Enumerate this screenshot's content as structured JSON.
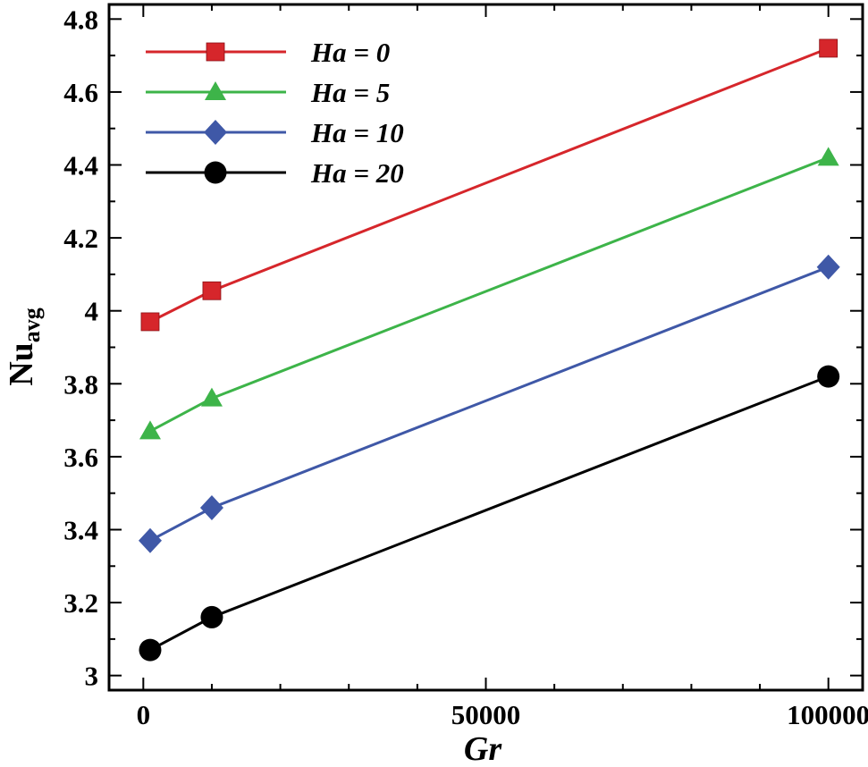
{
  "chart_data": {
    "type": "line",
    "title": "",
    "xlabel": "Gr",
    "ylabel": "Nu",
    "ylabel_subscript": "avg",
    "x": [
      1000,
      10000,
      100000
    ],
    "xlim": [
      -5000,
      105000
    ],
    "ylim": [
      2.96,
      4.84
    ],
    "xticks": [
      0,
      50000,
      100000
    ],
    "xtick_labels": [
      "0",
      "50000",
      "100000"
    ],
    "yticks": [
      3,
      3.2,
      3.4,
      3.6,
      3.8,
      4,
      4.2,
      4.4,
      4.6,
      4.8
    ],
    "ytick_labels": [
      "3",
      "3.2",
      "3.4",
      "3.6",
      "3.8",
      "4",
      "4.2",
      "4.4",
      "4.6",
      "4.8"
    ],
    "legend_position": "top-left",
    "series": [
      {
        "name": "Ha = 0",
        "values": [
          3.97,
          4.055,
          4.72
        ],
        "color": "#d6262b",
        "marker": "square"
      },
      {
        "name": "Ha = 5",
        "values": [
          3.67,
          3.76,
          4.42
        ],
        "color": "#3db449",
        "marker": "triangle"
      },
      {
        "name": "Ha = 10",
        "values": [
          3.37,
          3.46,
          4.12
        ],
        "color": "#3f58a7",
        "marker": "diamond"
      },
      {
        "name": "Ha = 20",
        "values": [
          3.07,
          3.16,
          3.82
        ],
        "color": "#000000",
        "marker": "circle"
      }
    ]
  }
}
